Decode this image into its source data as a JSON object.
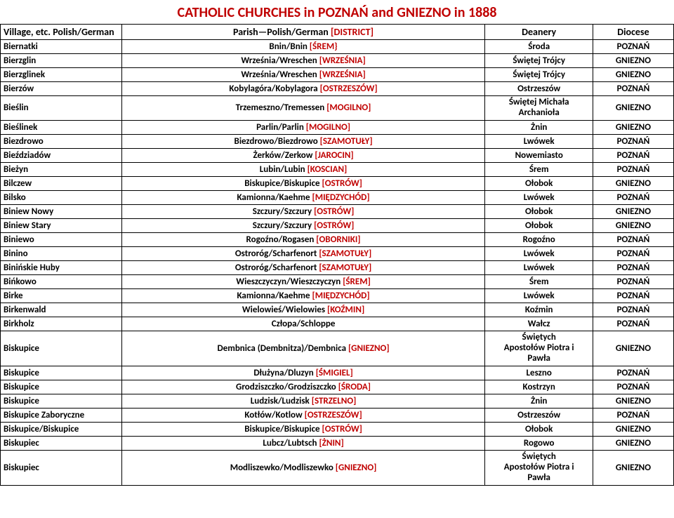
{
  "title": "CATHOLIC CHURCHES in POZNAŃ and GNIEZNO in 1888",
  "colors": {
    "accent": "#c00000",
    "border": "#000000",
    "background": "#ffffff",
    "text": "#000000"
  },
  "headers": {
    "village": "Village, etc. Polish/German",
    "parish_prefix": "Parish—Polish/German ",
    "parish_dist": "[DISTRICT]",
    "deanery": "Deanery",
    "diocese": "Diocese"
  },
  "rows": [
    {
      "village": "Biernatki",
      "parish_pre": "Bnin/Bnin ",
      "dist": "[ŚREM}",
      "parish_post": "",
      "deanery": "Środa",
      "diocese": "POZNAŃ"
    },
    {
      "village": "Bierzglin",
      "parish_pre": "Września/Wreschen ",
      "dist": "[WRZEŚNIA]",
      "parish_post": "",
      "deanery": "Świętej Trójcy",
      "diocese": "GNIEZNO"
    },
    {
      "village": "Bierzglinek",
      "parish_pre": "Września/Wreschen ",
      "dist": "[WRZEŚNIA]",
      "parish_post": "",
      "deanery": "Świętej Trójcy",
      "diocese": "GNIEZNO"
    },
    {
      "village": "Bierzów",
      "parish_pre": "Kobylagóra/Kobylagora ",
      "dist": "[OSTRZESZÓW]",
      "parish_post": "",
      "deanery": "Ostrzeszów",
      "diocese": "POZNAŃ"
    },
    {
      "village": "Bieślin",
      "parish_pre": "Trzemeszno/Tremessen ",
      "dist": "[MOGILNO]",
      "parish_post": "",
      "deanery": "Świętej Michała\nArchanioła",
      "diocese": "GNIEZNO"
    },
    {
      "village": "Bieślinek",
      "parish_pre": "Parlin/Parlin ",
      "dist": "[MOGILNO]",
      "parish_post": "",
      "deanery": "Żnin",
      "diocese": "GNIEZNO"
    },
    {
      "village": "Biezdrowo",
      "parish_pre": "Biezdrowo/Biezdrowo ",
      "dist": "[SZAMOTUŁY]",
      "parish_post": "",
      "deanery": "Lwówek",
      "diocese": "POZNAŃ"
    },
    {
      "village": "Bieździadów",
      "parish_pre": "Żerków/Zerkow ",
      "dist": "[JAROCIN]",
      "parish_post": "",
      "deanery": "Nowemiasto",
      "diocese": "POZNAŃ"
    },
    {
      "village": "Bieżyn",
      "parish_pre": "Lubin/Lubin ",
      "dist": "[KOSCIAN]",
      "parish_post": "",
      "deanery": "Śrem",
      "diocese": "POZNAŃ"
    },
    {
      "village": "Bilczew",
      "parish_pre": "Biskupice/Biskupice ",
      "dist": "[OSTRÓW]",
      "parish_post": "",
      "deanery": "Ołobok",
      "diocese": "GNIEZNO"
    },
    {
      "village": "Bilsko",
      "parish_pre": "Kamionna/Kaehme ",
      "dist": "[MIĘDZYCHÓD]",
      "parish_post": "",
      "deanery": "Lwówek",
      "diocese": "POZNAŃ"
    },
    {
      "village": "Biniew Nowy",
      "parish_pre": "Szczury/Szczury ",
      "dist": "[OSTRÓW]",
      "parish_post": "",
      "deanery": "Ołobok",
      "diocese": "GNIEZNO"
    },
    {
      "village": "Biniew Stary",
      "parish_pre": "Szczury/Szczury ",
      "dist": "[OSTRÓW]",
      "parish_post": "",
      "deanery": "Ołobok",
      "diocese": "GNIEZNO"
    },
    {
      "village": "Biniewo",
      "parish_pre": "Rogoźno/Rogasen ",
      "dist": "[OBORNIKI]",
      "parish_post": "",
      "deanery": "Rogoźno",
      "diocese": "POZNAŃ"
    },
    {
      "village": "Binino",
      "parish_pre": "Ostroróg/Scharfenort ",
      "dist": "[SZAMOTUŁY]",
      "parish_post": "",
      "deanery": "Lwówek",
      "diocese": "POZNAŃ"
    },
    {
      "village": "Binińskie Huby",
      "parish_pre": "Ostroróg/Scharfenort ",
      "dist": "[SZAMOTUŁY]",
      "parish_post": "",
      "deanery": "Lwówek",
      "diocese": "POZNAŃ"
    },
    {
      "village": "Bińkowo",
      "parish_pre": "Wieszczyczyn/Wieszczyczyn ",
      "dist": "[ŚREM]",
      "parish_post": "",
      "deanery": "Śrem",
      "diocese": "POZNAŃ"
    },
    {
      "village": "Birke",
      "parish_pre": "Kamionna/Kaehme ",
      "dist": "[MIĘDZYCHÓD]",
      "parish_post": "",
      "deanery": "Lwówek",
      "diocese": "POZNAŃ"
    },
    {
      "village": "Birkenwald",
      "parish_pre": "Wielowieś/Wielowies ",
      "dist": "[KOŹMIN]",
      "parish_post": "",
      "deanery": "Koźmin",
      "diocese": "POZNAŃ"
    },
    {
      "village": "Birkholz",
      "parish_pre": "Człopa/Schloppe",
      "dist": "",
      "parish_post": "",
      "deanery": "Wałcz",
      "diocese": "POZNAŃ"
    },
    {
      "village": "Biskupice",
      "parish_pre": "Dembnica (Dembnitza)/Dembnica ",
      "dist": "[GNIEZNO]",
      "parish_post": "",
      "deanery": "Świętych\nApostołów Piotra i\nPawła",
      "diocese": "GNIEZNO"
    },
    {
      "village": "Biskupice",
      "parish_pre": "Dłużyna/Dluzyn ",
      "dist": "[ŚMIGIEL]",
      "parish_post": "",
      "deanery": "Leszno",
      "diocese": "POZNAŃ"
    },
    {
      "village": "Biskupice",
      "parish_pre": "Grodziszczko/Grodziszczko ",
      "dist": "[ŚRODA]",
      "parish_post": "",
      "deanery": "Kostrzyn",
      "diocese": "POZNAŃ"
    },
    {
      "village": "Biskupice",
      "parish_pre": "Ludzisk/Ludzisk ",
      "dist": "[STRZELNO]",
      "parish_post": "",
      "deanery": "Żnin",
      "diocese": "GNIEZNO"
    },
    {
      "village": "Biskupice Zaboryczne",
      "parish_pre": "Kotłów/Kotlow ",
      "dist": "[OSTRZESZÓW]",
      "parish_post": "",
      "deanery": "Ostrzeszów",
      "diocese": "POZNAŃ"
    },
    {
      "village": "Biskupice/Biskupice",
      "parish_pre": "Biskupice/Biskupice ",
      "dist": "[OSTRÓW]",
      "parish_post": "",
      "deanery": "Ołobok",
      "diocese": "GNIEZNO"
    },
    {
      "village": "Biskupiec",
      "parish_pre": "Lubcz/Lubtsch ",
      "dist": "[ŻNIN]",
      "parish_post": "",
      "deanery": "Rogowo",
      "diocese": "GNIEZNO"
    },
    {
      "village": "Biskupiec",
      "parish_pre": "Modliszewko/Modliszewko ",
      "dist": "[GNIEZNO]",
      "parish_post": "",
      "deanery": "Świętych\nApostołów Piotra i\nPawła",
      "diocese": "GNIEZNO"
    }
  ]
}
